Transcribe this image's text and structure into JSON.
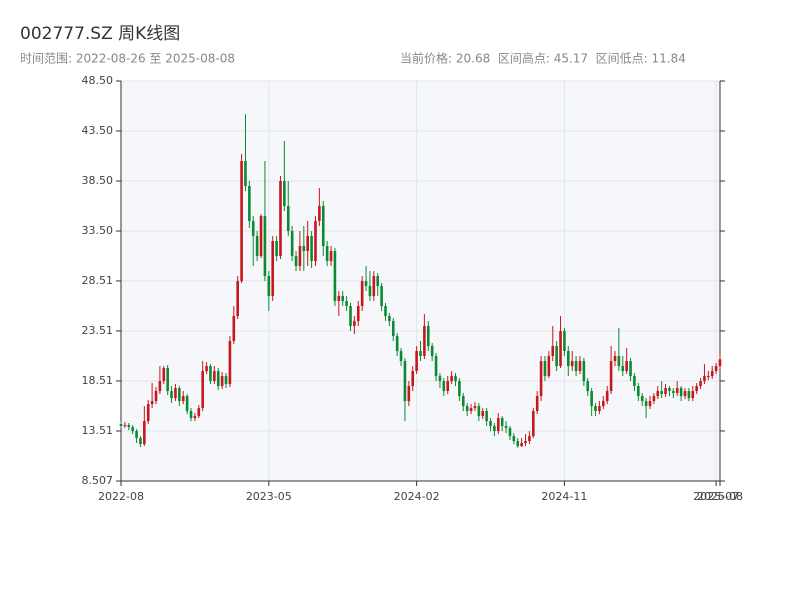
{
  "chart_data": {
    "type": "candlestick",
    "title": "002777.SZ 周K线图",
    "subtitle_left": "时间范围: 2022-08-26 至 2025-08-08",
    "subtitle_right": "当前价格: 20.68  区间高点: 45.17  区间低点: 11.84",
    "up_color": "#c8161d",
    "down_color": "#0b8a32",
    "grid": true,
    "xlim": [
      0,
      154
    ],
    "xticks": [
      {
        "value": 0,
        "label": "2022-08"
      },
      {
        "value": 38,
        "label": "2023-05"
      },
      {
        "value": 76,
        "label": "2024-02"
      },
      {
        "value": 114,
        "label": "2024-11"
      },
      {
        "value": 153,
        "label": "2025-07"
      },
      {
        "value": 154,
        "label": "2025-08"
      }
    ],
    "ylim": [
      8.507,
      48.5
    ],
    "yticks": [
      8.507,
      13.51,
      18.51,
      23.51,
      28.51,
      {
        "value": 33.5,
        "label": "33.50"
      },
      {
        "value": 38.5,
        "label": "38.50"
      },
      {
        "value": 43.5,
        "label": "43.50"
      },
      {
        "value": 48.5,
        "label": "48.50"
      }
    ],
    "open": [
      14.2,
      14.0,
      14.1,
      13.9,
      13.5,
      12.8,
      12.2,
      14.5,
      16.2,
      16.5,
      17.5,
      18.5,
      19.8,
      17.5,
      16.8,
      17.8,
      16.5,
      17.0,
      15.5,
      14.8,
      15.0,
      15.8,
      19.5,
      20.0,
      18.5,
      19.5,
      18.0,
      19.0,
      18.2,
      22.5,
      25.0,
      28.5,
      40.5,
      38.0,
      34.5,
      33.0,
      31.0,
      35.0,
      29.0,
      27.0,
      32.5,
      31.0,
      38.5,
      36.0,
      33.5,
      31.0,
      30.0,
      32.0,
      31.5,
      33.0,
      30.5,
      34.5,
      36.0,
      32.0,
      30.5,
      31.5,
      26.5,
      27.0,
      26.5,
      26.0,
      24.0,
      24.5,
      26.0,
      28.5,
      28.0,
      27.0,
      29.0,
      28.0,
      26.0,
      25.0,
      24.5,
      23.0,
      21.5,
      20.5,
      16.5,
      18.0,
      19.5,
      21.5,
      21.0,
      24.0,
      22.0,
      21.0,
      19.0,
      18.5,
      17.5,
      18.5,
      19.0,
      18.5,
      17.0,
      16.0,
      15.5,
      15.8,
      16.0,
      15.0,
      15.5,
      14.5,
      14.0,
      13.5,
      14.8,
      14.0,
      13.8,
      13.0,
      12.5,
      12.0,
      12.3,
      12.5,
      13.0,
      15.5,
      17.0,
      20.5,
      19.0,
      21.0,
      22.0,
      20.0,
      23.5,
      21.5,
      20.0,
      20.5,
      19.5,
      20.5,
      18.5,
      17.5,
      16.0,
      15.5,
      16.0,
      16.5,
      17.5,
      20.5,
      21.0,
      20.0,
      19.5,
      20.5,
      19.0,
      18.0,
      17.0,
      16.5,
      16.0,
      16.5,
      17.0,
      17.5,
      17.2,
      17.8,
      17.5,
      17.3,
      17.8,
      17.0,
      17.5,
      16.8,
      17.5,
      18.0,
      18.5,
      19.0,
      19.0,
      19.5,
      20.0
    ],
    "high": [
      14.5,
      14.4,
      14.3,
      14.1,
      13.7,
      13.0,
      16.0,
      16.6,
      18.3,
      17.9,
      20.0,
      20.0,
      20.1,
      18.0,
      18.2,
      18.0,
      17.5,
      17.2,
      15.8,
      15.3,
      16.1,
      20.5,
      20.4,
      20.2,
      20.0,
      19.8,
      19.4,
      19.3,
      23.0,
      26.0,
      29.0,
      41.2,
      45.17,
      38.5,
      35.0,
      33.5,
      35.2,
      40.5,
      29.5,
      33.0,
      33.0,
      39.0,
      42.5,
      38.5,
      34.0,
      31.5,
      33.5,
      34.0,
      34.5,
      33.5,
      35.0,
      37.8,
      36.5,
      32.5,
      32.0,
      31.8,
      27.5,
      27.5,
      27.0,
      26.3,
      25.0,
      26.5,
      29.0,
      30.0,
      29.5,
      29.5,
      29.3,
      28.3,
      26.3,
      25.3,
      24.8,
      23.3,
      21.8,
      20.8,
      18.5,
      20.0,
      22.0,
      22.5,
      25.2,
      24.5,
      22.3,
      21.3,
      19.3,
      18.8,
      19.0,
      19.5,
      19.3,
      18.8,
      17.3,
      16.3,
      16.2,
      16.4,
      16.3,
      15.8,
      15.8,
      14.8,
      14.3,
      15.3,
      15.0,
      14.5,
      14.0,
      13.3,
      12.8,
      12.8,
      13.2,
      13.5,
      15.8,
      17.5,
      21.0,
      21.0,
      21.5,
      24.0,
      22.5,
      25.0,
      23.8,
      22.0,
      21.5,
      21.0,
      21.0,
      20.8,
      18.8,
      17.8,
      16.3,
      16.5,
      17.0,
      18.0,
      22.0,
      21.5,
      23.8,
      21.0,
      21.8,
      20.8,
      19.3,
      18.3,
      17.3,
      16.8,
      17.0,
      17.3,
      18.0,
      18.5,
      18.2,
      18.0,
      17.8,
      18.5,
      18.0,
      17.8,
      17.8,
      18.0,
      18.3,
      18.8,
      20.2,
      19.5,
      20.0,
      20.3,
      21.2
    ],
    "low": [
      13.8,
      13.8,
      13.6,
      13.2,
      12.3,
      11.9,
      12.0,
      14.2,
      15.8,
      16.2,
      17.2,
      18.2,
      17.1,
      16.3,
      16.5,
      16.0,
      16.2,
      15.2,
      14.5,
      14.5,
      14.8,
      15.5,
      19.2,
      18.2,
      18.2,
      17.6,
      17.7,
      17.8,
      17.9,
      22.2,
      24.7,
      28.3,
      37.5,
      33.8,
      30.0,
      30.5,
      30.8,
      28.5,
      25.5,
      26.5,
      30.5,
      30.7,
      35.5,
      33.0,
      30.5,
      29.5,
      29.5,
      29.5,
      30.0,
      29.8,
      30.0,
      34.0,
      31.0,
      30.0,
      30.0,
      26.0,
      25.0,
      26.0,
      25.5,
      23.5,
      23.2,
      24.0,
      25.5,
      27.5,
      26.5,
      26.5,
      27.0,
      25.5,
      24.5,
      24.0,
      22.5,
      21.0,
      20.0,
      14.5,
      16.0,
      17.5,
      19.2,
      20.5,
      20.7,
      21.5,
      20.5,
      18.5,
      17.8,
      17.0,
      17.2,
      18.2,
      18.0,
      16.5,
      15.5,
      15.0,
      15.2,
      15.5,
      14.5,
      14.7,
      14.0,
      13.5,
      13.0,
      13.2,
      13.5,
      13.3,
      12.6,
      12.2,
      11.84,
      11.9,
      12.0,
      12.2,
      12.8,
      15.2,
      16.5,
      18.5,
      18.8,
      20.5,
      19.5,
      19.8,
      21.0,
      19.0,
      19.5,
      19.0,
      19.2,
      18.0,
      17.0,
      15.0,
      15.0,
      15.2,
      15.7,
      16.2,
      17.2,
      20.0,
      19.5,
      19.0,
      19.2,
      18.5,
      17.5,
      16.5,
      16.0,
      14.8,
      15.7,
      16.2,
      16.7,
      16.8,
      16.9,
      17.0,
      16.8,
      17.0,
      16.5,
      16.7,
      16.5,
      16.5,
      17.2,
      17.7,
      18.2,
      18.6,
      18.7,
      19.2,
      19.7
    ],
    "close": [
      14.0,
      14.1,
      13.9,
      13.5,
      12.8,
      12.2,
      14.5,
      16.2,
      16.5,
      17.5,
      18.5,
      19.8,
      17.5,
      16.8,
      17.8,
      16.5,
      17.0,
      15.5,
      14.8,
      15.0,
      15.8,
      19.5,
      20.0,
      18.5,
      19.5,
      18.0,
      19.0,
      18.2,
      22.5,
      25.0,
      28.5,
      40.5,
      38.0,
      34.5,
      33.0,
      31.0,
      35.0,
      29.0,
      27.0,
      32.5,
      31.0,
      38.5,
      36.0,
      33.5,
      31.0,
      30.0,
      32.0,
      31.5,
      33.0,
      30.5,
      34.5,
      36.0,
      32.0,
      30.5,
      31.5,
      26.5,
      27.0,
      26.5,
      26.0,
      24.0,
      24.5,
      26.0,
      28.5,
      28.0,
      27.0,
      29.0,
      28.0,
      26.0,
      25.0,
      24.5,
      23.0,
      21.5,
      20.5,
      16.5,
      18.0,
      19.5,
      21.5,
      21.0,
      24.0,
      22.0,
      21.0,
      19.0,
      18.5,
      17.5,
      18.5,
      19.0,
      18.5,
      17.0,
      16.0,
      15.5,
      15.8,
      16.0,
      15.0,
      15.5,
      14.5,
      14.0,
      13.5,
      14.8,
      14.0,
      13.8,
      13.0,
      12.5,
      12.0,
      12.3,
      12.5,
      13.0,
      15.5,
      17.0,
      20.5,
      19.0,
      21.0,
      22.0,
      20.0,
      23.5,
      21.5,
      20.0,
      20.5,
      19.5,
      20.5,
      18.5,
      17.5,
      16.0,
      15.5,
      16.0,
      16.5,
      17.5,
      20.5,
      21.0,
      20.0,
      19.5,
      20.5,
      19.0,
      18.0,
      17.0,
      16.5,
      16.0,
      16.5,
      17.0,
      17.5,
      17.2,
      17.8,
      17.5,
      17.3,
      17.8,
      17.0,
      17.5,
      16.8,
      17.5,
      18.0,
      18.5,
      19.0,
      19.0,
      19.5,
      20.0,
      20.68
    ]
  }
}
